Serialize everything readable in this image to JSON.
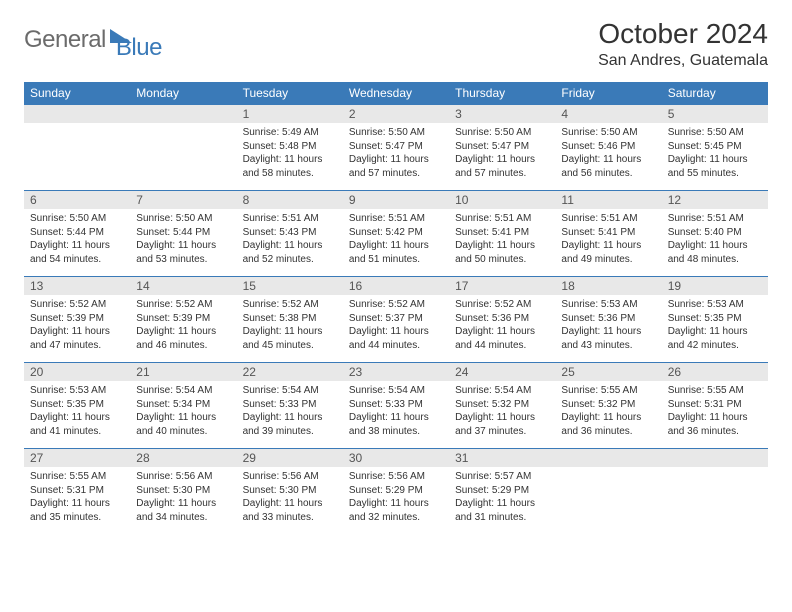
{
  "logo": {
    "general": "General",
    "blue": "Blue"
  },
  "header": {
    "month_title": "October 2024",
    "location": "San Andres, Guatemala"
  },
  "colors": {
    "accent": "#3a7ab8",
    "header_bg": "#3a7ab8",
    "daynum_bg": "#e8e8e8",
    "text": "#333333",
    "logo_gray": "#6b6b6b"
  },
  "day_labels": [
    "Sunday",
    "Monday",
    "Tuesday",
    "Wednesday",
    "Thursday",
    "Friday",
    "Saturday"
  ],
  "weeks": [
    [
      null,
      null,
      {
        "n": "1",
        "sunrise": "Sunrise: 5:49 AM",
        "sunset": "Sunset: 5:48 PM",
        "day1": "Daylight: 11 hours",
        "day2": "and 58 minutes."
      },
      {
        "n": "2",
        "sunrise": "Sunrise: 5:50 AM",
        "sunset": "Sunset: 5:47 PM",
        "day1": "Daylight: 11 hours",
        "day2": "and 57 minutes."
      },
      {
        "n": "3",
        "sunrise": "Sunrise: 5:50 AM",
        "sunset": "Sunset: 5:47 PM",
        "day1": "Daylight: 11 hours",
        "day2": "and 57 minutes."
      },
      {
        "n": "4",
        "sunrise": "Sunrise: 5:50 AM",
        "sunset": "Sunset: 5:46 PM",
        "day1": "Daylight: 11 hours",
        "day2": "and 56 minutes."
      },
      {
        "n": "5",
        "sunrise": "Sunrise: 5:50 AM",
        "sunset": "Sunset: 5:45 PM",
        "day1": "Daylight: 11 hours",
        "day2": "and 55 minutes."
      }
    ],
    [
      {
        "n": "6",
        "sunrise": "Sunrise: 5:50 AM",
        "sunset": "Sunset: 5:44 PM",
        "day1": "Daylight: 11 hours",
        "day2": "and 54 minutes."
      },
      {
        "n": "7",
        "sunrise": "Sunrise: 5:50 AM",
        "sunset": "Sunset: 5:44 PM",
        "day1": "Daylight: 11 hours",
        "day2": "and 53 minutes."
      },
      {
        "n": "8",
        "sunrise": "Sunrise: 5:51 AM",
        "sunset": "Sunset: 5:43 PM",
        "day1": "Daylight: 11 hours",
        "day2": "and 52 minutes."
      },
      {
        "n": "9",
        "sunrise": "Sunrise: 5:51 AM",
        "sunset": "Sunset: 5:42 PM",
        "day1": "Daylight: 11 hours",
        "day2": "and 51 minutes."
      },
      {
        "n": "10",
        "sunrise": "Sunrise: 5:51 AM",
        "sunset": "Sunset: 5:41 PM",
        "day1": "Daylight: 11 hours",
        "day2": "and 50 minutes."
      },
      {
        "n": "11",
        "sunrise": "Sunrise: 5:51 AM",
        "sunset": "Sunset: 5:41 PM",
        "day1": "Daylight: 11 hours",
        "day2": "and 49 minutes."
      },
      {
        "n": "12",
        "sunrise": "Sunrise: 5:51 AM",
        "sunset": "Sunset: 5:40 PM",
        "day1": "Daylight: 11 hours",
        "day2": "and 48 minutes."
      }
    ],
    [
      {
        "n": "13",
        "sunrise": "Sunrise: 5:52 AM",
        "sunset": "Sunset: 5:39 PM",
        "day1": "Daylight: 11 hours",
        "day2": "and 47 minutes."
      },
      {
        "n": "14",
        "sunrise": "Sunrise: 5:52 AM",
        "sunset": "Sunset: 5:39 PM",
        "day1": "Daylight: 11 hours",
        "day2": "and 46 minutes."
      },
      {
        "n": "15",
        "sunrise": "Sunrise: 5:52 AM",
        "sunset": "Sunset: 5:38 PM",
        "day1": "Daylight: 11 hours",
        "day2": "and 45 minutes."
      },
      {
        "n": "16",
        "sunrise": "Sunrise: 5:52 AM",
        "sunset": "Sunset: 5:37 PM",
        "day1": "Daylight: 11 hours",
        "day2": "and 44 minutes."
      },
      {
        "n": "17",
        "sunrise": "Sunrise: 5:52 AM",
        "sunset": "Sunset: 5:36 PM",
        "day1": "Daylight: 11 hours",
        "day2": "and 44 minutes."
      },
      {
        "n": "18",
        "sunrise": "Sunrise: 5:53 AM",
        "sunset": "Sunset: 5:36 PM",
        "day1": "Daylight: 11 hours",
        "day2": "and 43 minutes."
      },
      {
        "n": "19",
        "sunrise": "Sunrise: 5:53 AM",
        "sunset": "Sunset: 5:35 PM",
        "day1": "Daylight: 11 hours",
        "day2": "and 42 minutes."
      }
    ],
    [
      {
        "n": "20",
        "sunrise": "Sunrise: 5:53 AM",
        "sunset": "Sunset: 5:35 PM",
        "day1": "Daylight: 11 hours",
        "day2": "and 41 minutes."
      },
      {
        "n": "21",
        "sunrise": "Sunrise: 5:54 AM",
        "sunset": "Sunset: 5:34 PM",
        "day1": "Daylight: 11 hours",
        "day2": "and 40 minutes."
      },
      {
        "n": "22",
        "sunrise": "Sunrise: 5:54 AM",
        "sunset": "Sunset: 5:33 PM",
        "day1": "Daylight: 11 hours",
        "day2": "and 39 minutes."
      },
      {
        "n": "23",
        "sunrise": "Sunrise: 5:54 AM",
        "sunset": "Sunset: 5:33 PM",
        "day1": "Daylight: 11 hours",
        "day2": "and 38 minutes."
      },
      {
        "n": "24",
        "sunrise": "Sunrise: 5:54 AM",
        "sunset": "Sunset: 5:32 PM",
        "day1": "Daylight: 11 hours",
        "day2": "and 37 minutes."
      },
      {
        "n": "25",
        "sunrise": "Sunrise: 5:55 AM",
        "sunset": "Sunset: 5:32 PM",
        "day1": "Daylight: 11 hours",
        "day2": "and 36 minutes."
      },
      {
        "n": "26",
        "sunrise": "Sunrise: 5:55 AM",
        "sunset": "Sunset: 5:31 PM",
        "day1": "Daylight: 11 hours",
        "day2": "and 36 minutes."
      }
    ],
    [
      {
        "n": "27",
        "sunrise": "Sunrise: 5:55 AM",
        "sunset": "Sunset: 5:31 PM",
        "day1": "Daylight: 11 hours",
        "day2": "and 35 minutes."
      },
      {
        "n": "28",
        "sunrise": "Sunrise: 5:56 AM",
        "sunset": "Sunset: 5:30 PM",
        "day1": "Daylight: 11 hours",
        "day2": "and 34 minutes."
      },
      {
        "n": "29",
        "sunrise": "Sunrise: 5:56 AM",
        "sunset": "Sunset: 5:30 PM",
        "day1": "Daylight: 11 hours",
        "day2": "and 33 minutes."
      },
      {
        "n": "30",
        "sunrise": "Sunrise: 5:56 AM",
        "sunset": "Sunset: 5:29 PM",
        "day1": "Daylight: 11 hours",
        "day2": "and 32 minutes."
      },
      {
        "n": "31",
        "sunrise": "Sunrise: 5:57 AM",
        "sunset": "Sunset: 5:29 PM",
        "day1": "Daylight: 11 hours",
        "day2": "and 31 minutes."
      },
      null,
      null
    ]
  ]
}
